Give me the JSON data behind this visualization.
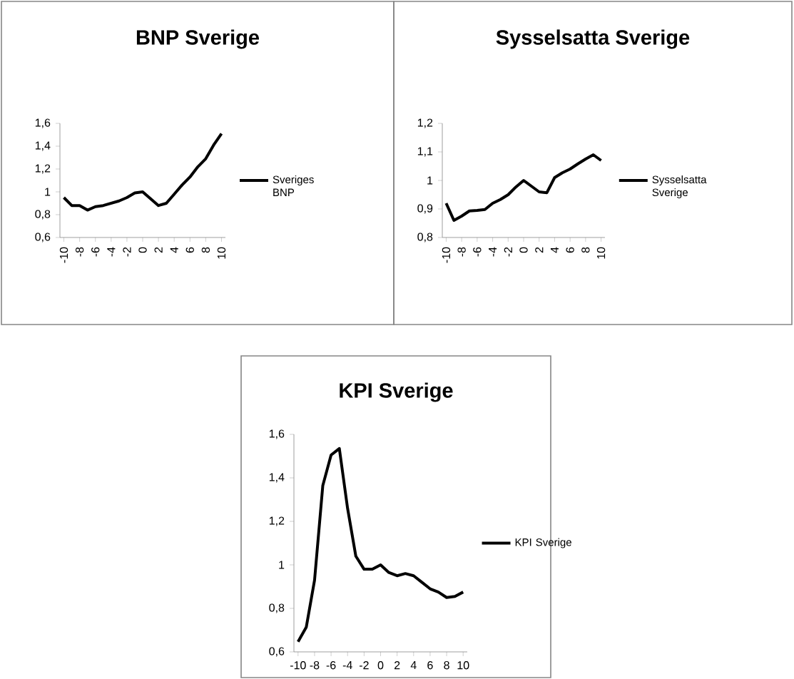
{
  "chart_data": [
    {
      "type": "line",
      "title": "BNP Sverige",
      "x": [
        -10,
        -9,
        -8,
        -7,
        -6,
        -5,
        -4,
        -3,
        -2,
        -1,
        0,
        1,
        2,
        3,
        4,
        5,
        6,
        7,
        8,
        9,
        10
      ],
      "series": [
        {
          "name": "Sveriges BNP",
          "color": "#000000",
          "values": [
            0.95,
            0.88,
            0.88,
            0.84,
            0.87,
            0.88,
            0.9,
            0.92,
            0.95,
            0.99,
            1.0,
            0.94,
            0.88,
            0.9,
            0.98,
            1.06,
            1.13,
            1.22,
            1.29,
            1.41,
            1.51
          ]
        }
      ],
      "xlim": [
        -10.5,
        10.5
      ],
      "xticks": [
        -10,
        -8,
        -6,
        -4,
        -2,
        0,
        2,
        4,
        6,
        8,
        10
      ],
      "ylim": [
        0.6,
        1.6
      ],
      "yticks": [
        {
          "value": 0.6,
          "label": "0,6"
        },
        {
          "value": 0.8,
          "label": "0,8"
        },
        1,
        {
          "value": 1.2,
          "label": "1,2"
        },
        {
          "value": 1.4,
          "label": "1,4"
        },
        {
          "value": 1.6,
          "label": "1,6"
        }
      ],
      "legend": "right",
      "marker": "none",
      "line_style": "solid",
      "grid": false
    },
    {
      "type": "line",
      "title": "Sysselsatta Sverige",
      "x": [
        -10,
        -9,
        -8,
        -7,
        -6,
        -5,
        -4,
        -3,
        -2,
        -1,
        0,
        1,
        2,
        3,
        4,
        5,
        6,
        7,
        8,
        9,
        10
      ],
      "series": [
        {
          "name": "Sysselsatta Sverige",
          "color": "#000000",
          "values": [
            0.92,
            0.86,
            0.875,
            0.893,
            0.895,
            0.898,
            0.92,
            0.933,
            0.95,
            0.977,
            1.0,
            0.98,
            0.96,
            0.957,
            1.01,
            1.027,
            1.04,
            1.058,
            1.075,
            1.09,
            1.07
          ]
        }
      ],
      "xlim": [
        -10.5,
        10.5
      ],
      "xticks": [
        -10,
        -8,
        -6,
        -4,
        -2,
        0,
        2,
        4,
        6,
        8,
        10
      ],
      "ylim": [
        0.8,
        1.2
      ],
      "yticks": [
        {
          "value": 0.8,
          "label": "0,8"
        },
        {
          "value": 0.9,
          "label": "0,9"
        },
        1,
        {
          "value": 1.1,
          "label": "1,1"
        },
        {
          "value": 1.2,
          "label": "1,2"
        }
      ],
      "legend": "right",
      "marker": "none",
      "line_style": "solid",
      "grid": false
    },
    {
      "type": "line",
      "title": "KPI Sverige",
      "x": [
        -10,
        -9,
        -8,
        -7,
        -6,
        -5,
        -4,
        -3,
        -2,
        -1,
        0,
        1,
        2,
        3,
        4,
        5,
        6,
        7,
        8,
        9,
        10
      ],
      "series": [
        {
          "name": "KPI Sverige",
          "color": "#000000",
          "values": [
            0.647,
            0.714,
            0.93,
            1.365,
            1.505,
            1.535,
            1.26,
            1.04,
            0.98,
            0.98,
            1.0,
            0.965,
            0.95,
            0.96,
            0.95,
            0.92,
            0.89,
            0.875,
            0.85,
            0.855,
            0.875
          ]
        }
      ],
      "xlim": [
        -10.5,
        10.5
      ],
      "xticks": [
        -10,
        -8,
        -6,
        -4,
        -2,
        0,
        2,
        4,
        6,
        8,
        10
      ],
      "ylim": [
        0.6,
        1.6
      ],
      "yticks": [
        {
          "value": 0.6,
          "label": "0,6"
        },
        {
          "value": 0.8,
          "label": "0,8"
        },
        1,
        {
          "value": 1.2,
          "label": "1,2"
        },
        {
          "value": 1.4,
          "label": "1,4"
        },
        {
          "value": 1.6,
          "label": "1,6"
        }
      ],
      "legend": "right",
      "marker": "none",
      "line_style": "solid",
      "grid": false
    }
  ]
}
